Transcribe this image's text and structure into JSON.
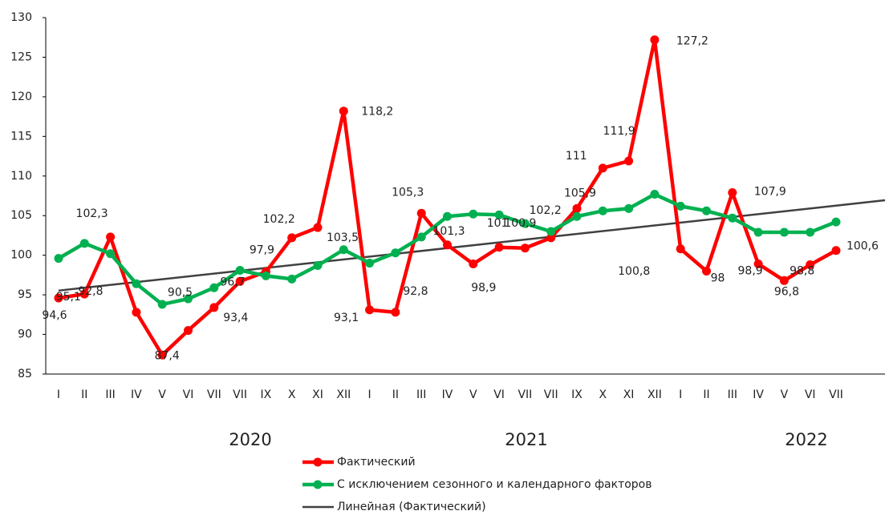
{
  "chart_data": {
    "type": "line",
    "categories": [
      "I",
      "II",
      "III",
      "IV",
      "V",
      "VI",
      "VII",
      "VII",
      "IX",
      "X",
      "XI",
      "XII",
      "I",
      "II",
      "III",
      "IV",
      "V",
      "VI",
      "VII",
      "VII",
      "IX",
      "X",
      "XI",
      "XII",
      "I",
      "II",
      "III",
      "IV",
      "V",
      "VI",
      "VII"
    ],
    "period_labels": [
      "2020",
      "2021",
      "2022"
    ],
    "ylim": [
      85,
      130
    ],
    "yticks": [
      85,
      90,
      95,
      100,
      105,
      110,
      115,
      120,
      125,
      130
    ],
    "grid": false,
    "series": [
      {
        "name": "Фактический",
        "color": "#ff0000",
        "values": [
          94.6,
          95.1,
          102.3,
          92.8,
          87.4,
          90.5,
          93.4,
          96.7,
          97.9,
          102.2,
          103.5,
          118.2,
          93.1,
          92.8,
          105.3,
          101.3,
          98.9,
          101,
          100.9,
          102.2,
          105.9,
          111,
          111.9,
          127.2,
          100.8,
          98,
          107.9,
          98.9,
          96.8,
          98.8,
          100.6
        ],
        "value_labels": [
          "94,6",
          "95,1",
          "102,3",
          "92,8",
          "87,4",
          "90,5",
          "93,4",
          "96,7",
          "97,9",
          "102,2",
          "103,5",
          "118,2",
          "93,1",
          "92,8",
          "105,3",
          "101,3",
          "98,9",
          "101",
          "100,9",
          "102,2",
          "105,9",
          "111",
          "111,9",
          "127,2",
          "100,8",
          "98",
          "107,9",
          "98,9",
          "96,8",
          "98,8",
          "100,6"
        ]
      },
      {
        "name": "С исключением сезонного и календарного факторов",
        "color": "#00b050",
        "values": [
          99.6,
          101.5,
          100.2,
          96.4,
          93.8,
          94.5,
          95.9,
          98.1,
          97.4,
          97.0,
          98.7,
          100.7,
          99.0,
          100.3,
          102.3,
          104.9,
          105.2,
          105.1,
          104.0,
          103.0,
          104.9,
          105.6,
          105.9,
          107.7,
          106.2,
          105.6,
          104.7,
          102.9,
          102.9,
          102.9,
          104.2
        ]
      },
      {
        "name": "Линейная (Фактический)",
        "color": "#404040",
        "trend": "linear",
        "trend_of": 0
      }
    ]
  }
}
